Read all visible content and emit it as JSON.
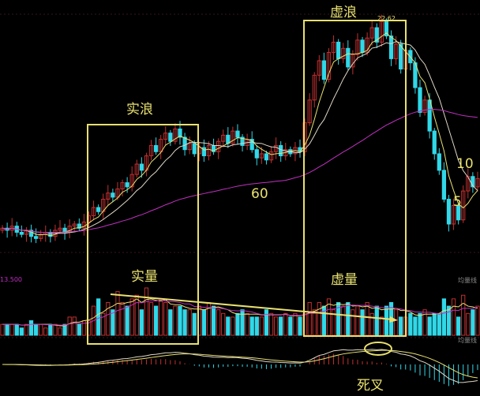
{
  "chart_data": {
    "type": "candlestick",
    "price_high_label": "22.62",
    "volume_axis_label": "13.500",
    "panel_tag_volume": "均量线",
    "panel_tag_macd": "均量线",
    "closes": [
      12.4,
      12.3,
      12.5,
      12.2,
      12.1,
      12.3,
      12.0,
      11.9,
      12.1,
      12.2,
      12.0,
      12.3,
      12.4,
      12.2,
      12.5,
      12.6,
      12.4,
      12.7,
      13.0,
      13.4,
      13.2,
      13.8,
      14.1,
      13.9,
      14.3,
      14.6,
      14.4,
      15.0,
      15.5,
      15.2,
      15.9,
      16.4,
      16.1,
      16.7,
      17.0,
      16.6,
      17.2,
      16.8,
      16.2,
      16.5,
      16.0,
      16.3,
      15.9,
      16.4,
      16.1,
      16.6,
      16.9,
      16.5,
      17.1,
      16.8,
      16.4,
      16.7,
      16.2,
      15.8,
      16.0,
      15.7,
      16.1,
      16.4,
      15.9,
      16.2,
      16.0,
      16.3,
      16.1,
      17.5,
      18.6,
      19.8,
      20.5,
      19.6,
      20.9,
      21.4,
      20.6,
      21.1,
      20.2,
      20.8,
      21.5,
      20.9,
      21.6,
      22.1,
      21.4,
      22.4,
      21.7,
      20.6,
      21.3,
      20.1,
      21.0,
      20.4,
      19.2,
      18.0,
      18.6,
      17.1,
      16.0,
      15.2,
      13.8,
      12.6,
      13.5,
      12.8,
      14.2,
      14.9,
      14.4,
      14.8
    ],
    "volumes": [
      3,
      3,
      3,
      3,
      2,
      3,
      4,
      3,
      3,
      2,
      3,
      3,
      2,
      3,
      5,
      5,
      3,
      4,
      4,
      8,
      10,
      6,
      9,
      7,
      12,
      9,
      8,
      10,
      11,
      7,
      13,
      9,
      8,
      10,
      9,
      7,
      8,
      8,
      7,
      7,
      6,
      8,
      7,
      9,
      8,
      7,
      6,
      5,
      5,
      6,
      7,
      6,
      5,
      5,
      5,
      7,
      6,
      5,
      5,
      6,
      5,
      6,
      5,
      6,
      9,
      7,
      9,
      8,
      10,
      7,
      9,
      8,
      9,
      7,
      8,
      7,
      9,
      6,
      8,
      5,
      8,
      9,
      7,
      5,
      5,
      6,
      5,
      6,
      7,
      5,
      6,
      6,
      10,
      8,
      10,
      5,
      11,
      6,
      7,
      8
    ],
    "moving_averages": [
      {
        "name": "5",
        "period": 5,
        "color": "#e8e070"
      },
      {
        "name": "10",
        "period": 10,
        "color": "#e0d8c8"
      },
      {
        "name": "60",
        "period": 60,
        "color": "#c030c0"
      }
    ],
    "up_color": "#c03030",
    "down_color": "#30d8e8",
    "annotations": {
      "real_wave": "实浪",
      "virtual_wave": "虚浪",
      "real_volume": "实量",
      "virtual_volume": "虚量",
      "death_cross": "死叉",
      "ma60_label": "60",
      "ma10_label": "10",
      "ma5_label": "5"
    },
    "annotation_color": "#e8e070"
  }
}
